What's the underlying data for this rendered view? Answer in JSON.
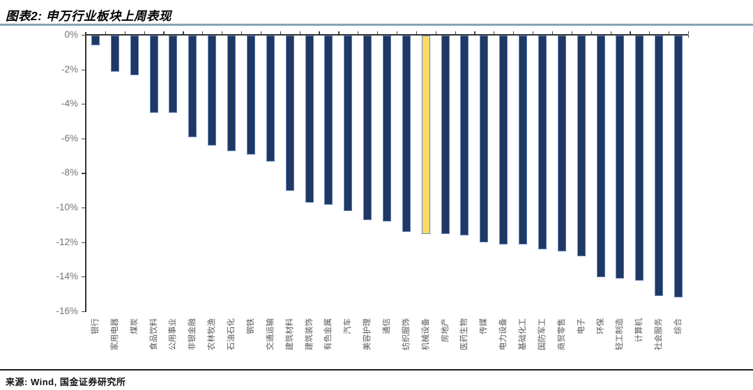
{
  "figure": {
    "title": "图表2: 申万行业板块上周表现",
    "source": "来源: Wind, 国金证券研究所"
  },
  "chart_data": {
    "type": "bar",
    "title": "申万行业板块上周表现",
    "unit": "%",
    "categories": [
      "银行",
      "家用电器",
      "煤炭",
      "食品饮料",
      "公用事业",
      "非银金融",
      "农林牧渔",
      "石油石化",
      "钢铁",
      "交通运输",
      "建筑材料",
      "建筑装饰",
      "有色金属",
      "汽车",
      "美容护理",
      "通信",
      "纺织服饰",
      "机械设备",
      "房地产",
      "医药生物",
      "传媒",
      "电力设备",
      "基础化工",
      "国防军工",
      "商贸零售",
      "电子",
      "环保",
      "轻工制造",
      "计算机",
      "社会服务",
      "综合"
    ],
    "values": [
      -0.6,
      -2.1,
      -2.3,
      -4.5,
      -4.5,
      -5.9,
      -6.4,
      -6.7,
      -6.9,
      -7.3,
      -9.0,
      -9.7,
      -9.8,
      -10.2,
      -10.7,
      -10.8,
      -11.4,
      -11.5,
      -11.5,
      -11.6,
      -12.0,
      -12.1,
      -12.1,
      -12.4,
      -12.5,
      -12.8,
      -14.0,
      -14.1,
      -14.2,
      -15.1,
      -15.2
    ],
    "highlight": {
      "category": "机械设备",
      "index": 17
    },
    "xlabel": "",
    "ylabel": "",
    "ylim": [
      -16,
      0
    ],
    "yticks": [
      "0%",
      "-2%",
      "-4%",
      "-6%",
      "-8%",
      "-10%",
      "-12%",
      "-14%",
      "-16%"
    ],
    "grid": false,
    "legend": null,
    "colors": {
      "bar_fill": "#1F3864",
      "bar_border": "#6485BE",
      "highlight_fill": "#FFD966",
      "axis": "#333333",
      "tick_label": "#737373",
      "category_label": "#595959",
      "title_rule": "#84A3B8"
    }
  }
}
